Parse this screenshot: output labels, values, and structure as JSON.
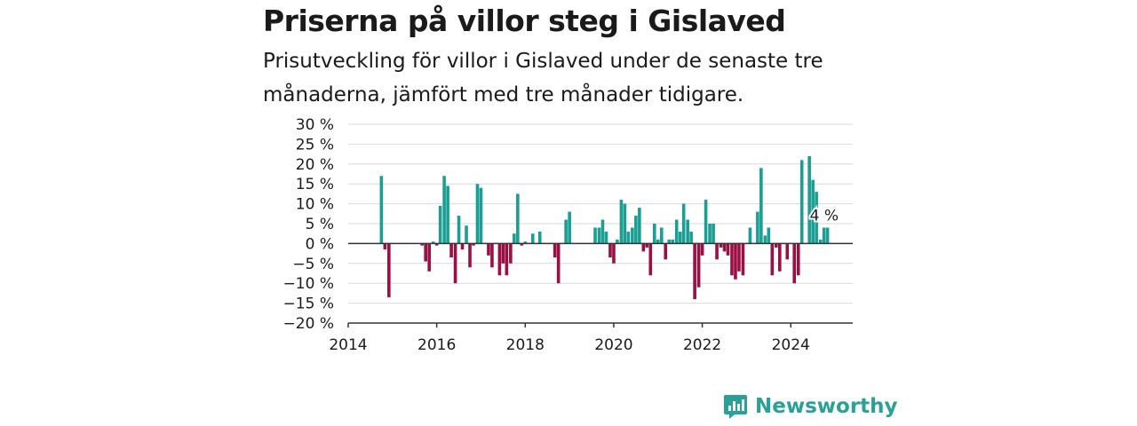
{
  "title": "Priserna på villor steg i Gislaved",
  "subtitle": "Prisutveckling för villor i Gislaved under de senaste tre månaderna, jämfört med tre månader tidigare.",
  "brand": {
    "name": "Newsworthy",
    "color": "#2aa197",
    "icon": "newsworthy-logo-icon"
  },
  "colors": {
    "positive": "#1b9e93",
    "negative": "#9b0f45",
    "grid": "#d9d9d9",
    "axis": "#333333"
  },
  "chart_data": {
    "type": "bar",
    "unit": "%",
    "ylim": [
      -20,
      30
    ],
    "yticks": [
      30,
      25,
      20,
      15,
      10,
      5,
      0,
      -5,
      -10,
      -15,
      -20
    ],
    "ytick_labels": [
      "30 %",
      "25 %",
      "20 %",
      "15 %",
      "10 %",
      "5 %",
      "0 %",
      "−5 %",
      "−10 %",
      "−15 %",
      "−20 %"
    ],
    "xlim": [
      2014.0,
      2025.4
    ],
    "xticks": [
      "2014",
      "2016",
      "2018",
      "2020",
      "2022",
      "2024"
    ],
    "grid": true,
    "annotation": {
      "x": 2024.75,
      "y": 4,
      "label": "4 %"
    },
    "x": [
      2014.75,
      2014.83,
      2014.92,
      2015.67,
      2015.75,
      2015.83,
      2015.92,
      2016.0,
      2016.08,
      2016.17,
      2016.25,
      2016.33,
      2016.42,
      2016.5,
      2016.58,
      2016.67,
      2016.75,
      2016.83,
      2016.92,
      2017.0,
      2017.17,
      2017.25,
      2017.42,
      2017.5,
      2017.58,
      2017.67,
      2017.75,
      2017.83,
      2017.92,
      2018.0,
      2018.17,
      2018.33,
      2018.67,
      2018.75,
      2018.92,
      2019.0,
      2019.58,
      2019.67,
      2019.75,
      2019.83,
      2019.92,
      2020.0,
      2020.08,
      2020.17,
      2020.25,
      2020.33,
      2020.42,
      2020.5,
      2020.58,
      2020.67,
      2020.75,
      2020.83,
      2020.92,
      2021.0,
      2021.08,
      2021.17,
      2021.25,
      2021.33,
      2021.42,
      2021.5,
      2021.58,
      2021.67,
      2021.75,
      2021.83,
      2021.92,
      2022.0,
      2022.08,
      2022.17,
      2022.25,
      2022.33,
      2022.42,
      2022.5,
      2022.58,
      2022.67,
      2022.75,
      2022.83,
      2022.92,
      2023.08,
      2023.25,
      2023.33,
      2023.42,
      2023.5,
      2023.58,
      2023.67,
      2023.75,
      2023.92,
      2024.08,
      2024.17,
      2024.25,
      2024.42,
      2024.5,
      2024.58,
      2024.67,
      2024.75,
      2024.83
    ],
    "values": [
      17,
      -1.5,
      -13.5,
      -0.5,
      -4.5,
      -7,
      0.5,
      -0.5,
      9.5,
      17,
      14.5,
      -3.5,
      -10,
      7,
      -1.5,
      4.5,
      -6,
      -0.5,
      15,
      14,
      -3,
      -6,
      -8,
      -5,
      -8,
      -5,
      2.5,
      12.5,
      -0.5,
      0.5,
      2.5,
      3,
      -3.5,
      -10,
      6,
      8,
      4,
      4,
      6,
      3,
      -3.5,
      -5,
      1,
      11,
      10,
      3,
      4,
      7,
      9,
      -2,
      -1,
      -8,
      5,
      1,
      4,
      -4,
      1,
      1,
      6,
      3,
      10,
      6,
      3,
      -14,
      -11,
      -3,
      11,
      5,
      5,
      -4,
      -1,
      -2,
      -3,
      -8,
      -9,
      -7,
      -8,
      4,
      8,
      19,
      2,
      4,
      -8,
      -1,
      -7,
      -4,
      -10,
      -8,
      21,
      22,
      16,
      13,
      1,
      4,
      4
    ]
  }
}
